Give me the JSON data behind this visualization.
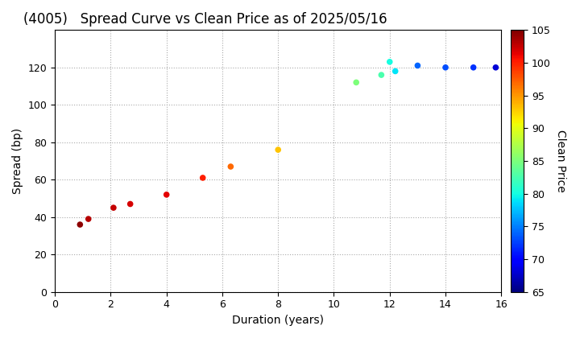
{
  "title": "(4005)   Spread Curve vs Clean Price as of 2025/05/16",
  "xlabel": "Duration (years)",
  "ylabel": "Spread (bp)",
  "colorbar_label": "Clean Price",
  "points": [
    {
      "duration": 0.9,
      "spread": 36,
      "price": 104.5
    },
    {
      "duration": 1.2,
      "spread": 39,
      "price": 103.0
    },
    {
      "duration": 2.1,
      "spread": 45,
      "price": 102.5
    },
    {
      "duration": 2.7,
      "spread": 47,
      "price": 102.0
    },
    {
      "duration": 4.0,
      "spread": 52,
      "price": 101.5
    },
    {
      "duration": 5.3,
      "spread": 61,
      "price": 100.0
    },
    {
      "duration": 6.3,
      "spread": 67,
      "price": 97.0
    },
    {
      "duration": 8.0,
      "spread": 76,
      "price": 93.0
    },
    {
      "duration": 10.8,
      "spread": 112,
      "price": 85.0
    },
    {
      "duration": 11.7,
      "spread": 116,
      "price": 82.5
    },
    {
      "duration": 12.0,
      "spread": 123,
      "price": 80.0
    },
    {
      "duration": 12.2,
      "spread": 118,
      "price": 79.0
    },
    {
      "duration": 13.0,
      "spread": 121,
      "price": 74.0
    },
    {
      "duration": 14.0,
      "spread": 120,
      "price": 73.0
    },
    {
      "duration": 15.0,
      "spread": 120,
      "price": 72.0
    },
    {
      "duration": 15.8,
      "spread": 120,
      "price": 68.0
    }
  ],
  "xlim": [
    0,
    16
  ],
  "ylim": [
    0,
    140
  ],
  "yticks": [
    0,
    20,
    40,
    60,
    80,
    100,
    120
  ],
  "xticks": [
    0,
    2,
    4,
    6,
    8,
    10,
    12,
    14,
    16
  ],
  "cmap": "jet",
  "clim": [
    65,
    105
  ],
  "cticks": [
    65,
    70,
    75,
    80,
    85,
    90,
    95,
    100,
    105
  ],
  "marker_size": 30,
  "background_color": "#ffffff",
  "grid_color": "#aaaaaa",
  "title_fontsize": 12,
  "axis_fontsize": 10,
  "tick_fontsize": 9
}
